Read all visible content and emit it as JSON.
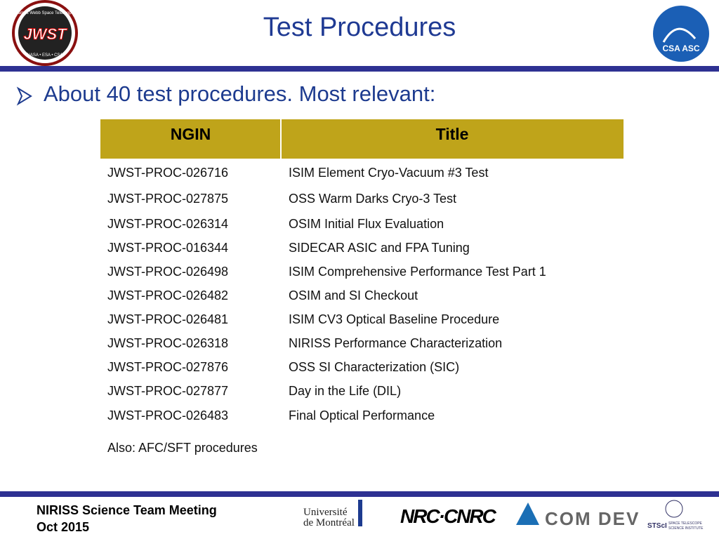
{
  "header": {
    "title": "Test Procedures",
    "left_logo": {
      "name": "James Webb Space Telescope",
      "mark": "JWST",
      "partners": "NASA • ESA • CSA"
    },
    "right_logo": "CSA ASC"
  },
  "bullet": "About 40 test procedures. Most relevant:",
  "table": {
    "columns": [
      "NGIN",
      "Title"
    ],
    "rows": [
      [
        "JWST-PROC-026716",
        "ISIM Element Cryo-Vacuum #3 Test"
      ],
      [
        "JWST-PROC-027875",
        "OSS Warm Darks Cryo-3 Test"
      ],
      [
        "JWST-PROC-026314",
        "OSIM Initial Flux Evaluation"
      ],
      [
        "JWST-PROC-016344",
        "SIDECAR ASIC and FPA Tuning"
      ],
      [
        "JWST-PROC-026498",
        "ISIM Comprehensive Performance Test Part 1"
      ],
      [
        "JWST-PROC-026482",
        "OSIM and SI Checkout"
      ],
      [
        "JWST-PROC-026481",
        "ISIM CV3 Optical Baseline Procedure"
      ],
      [
        "JWST-PROC-026318",
        "NIRISS Performance Characterization"
      ],
      [
        "JWST-PROC-027876",
        "OSS SI Characterization (SIC)"
      ],
      [
        "JWST-PROC-027877",
        "Day in the Life (DIL)"
      ],
      [
        "JWST-PROC-026483",
        "Final Optical Performance"
      ]
    ]
  },
  "note": "Also: AFC/SFT procedures",
  "footer": {
    "lines": [
      "NIRISS Science Team Meeting",
      "Oct 2015"
    ],
    "logos": [
      "Université",
      "de Montréal",
      "NRC·CNRC",
      "COM DEV",
      "STScI",
      "SPACE TELESCOPE",
      "SCIENCE INSTITUTE"
    ]
  }
}
